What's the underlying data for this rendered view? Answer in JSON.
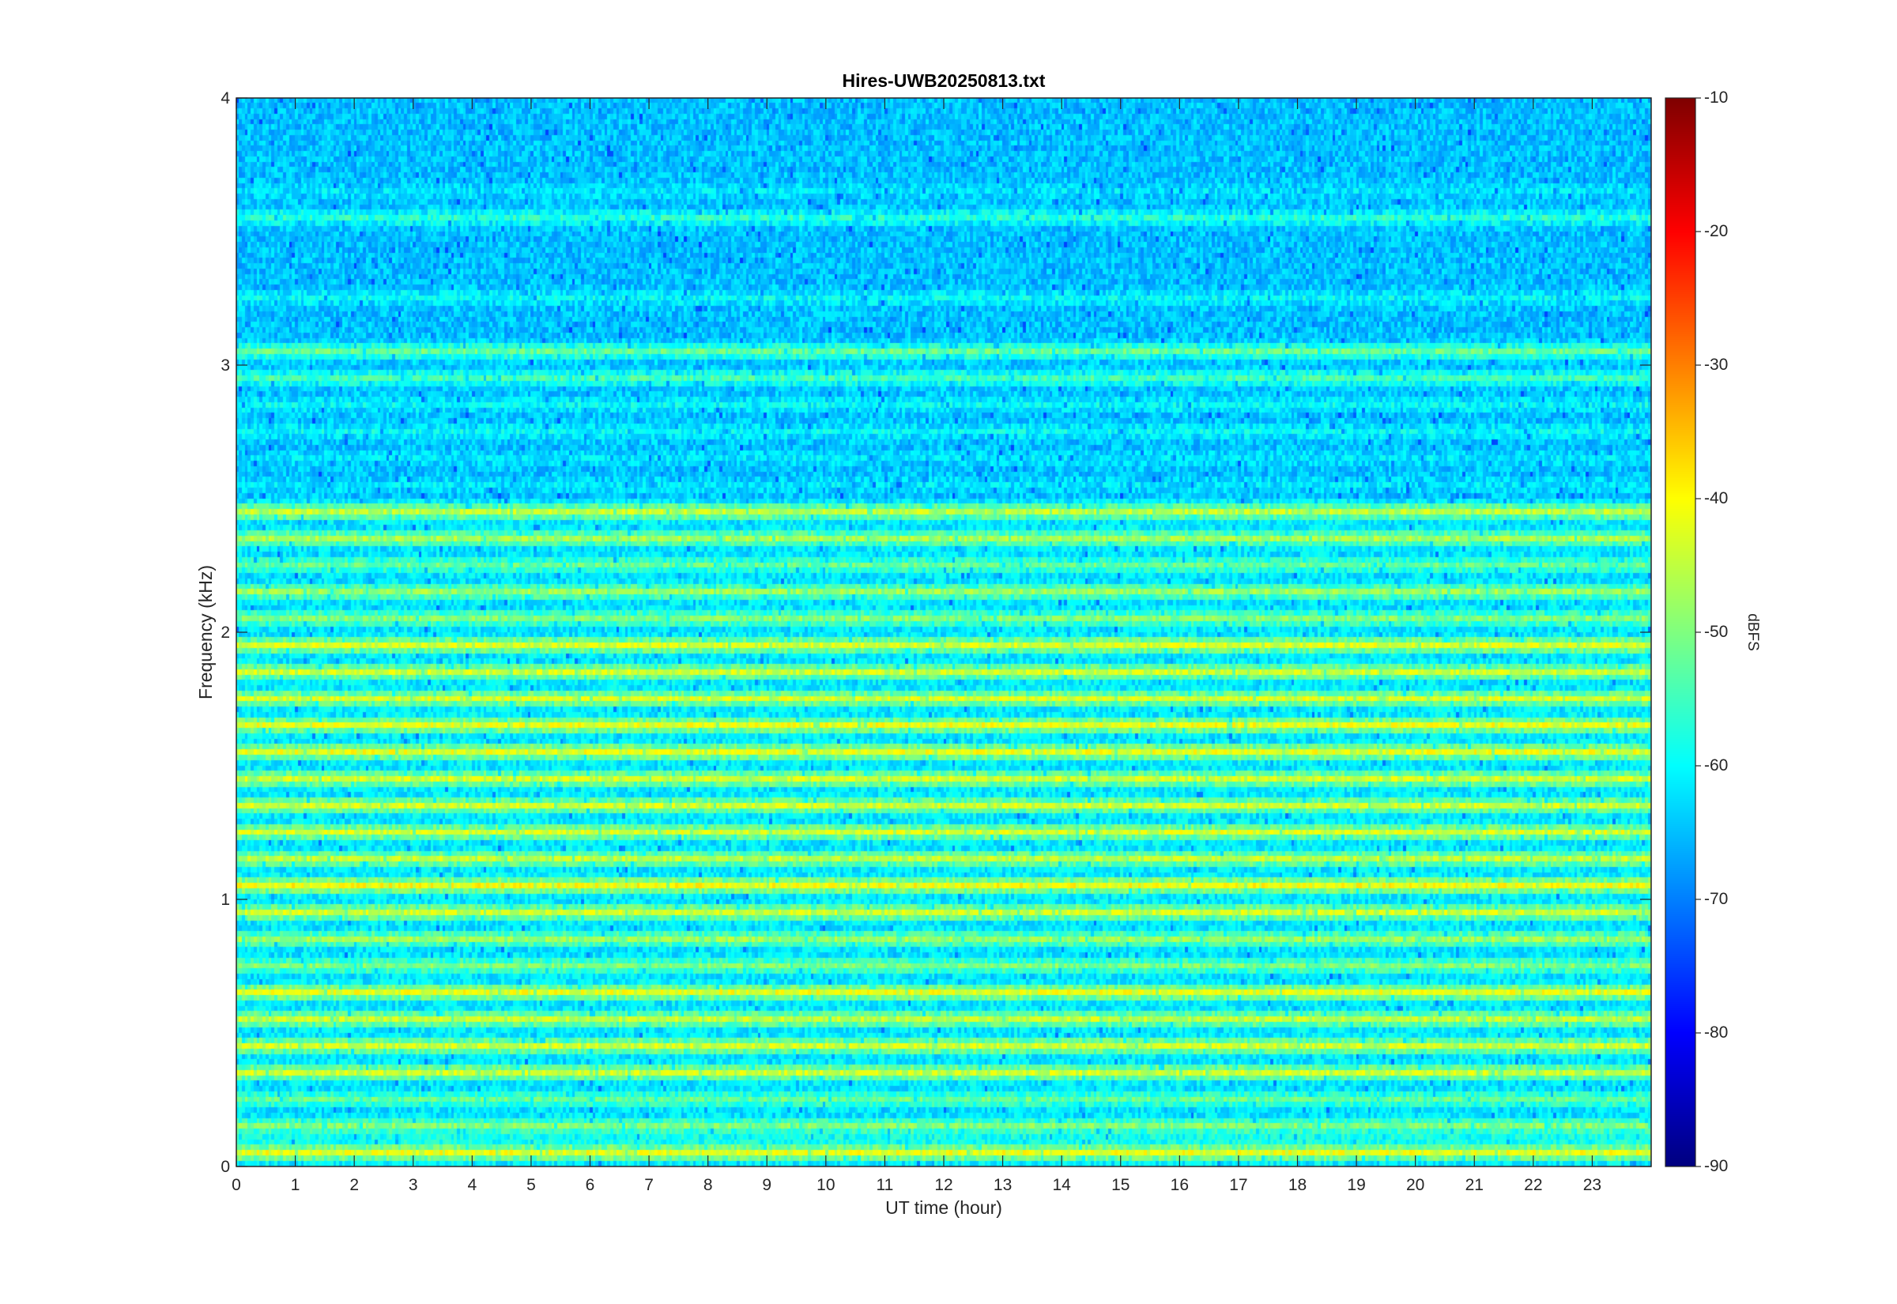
{
  "chart_data": {
    "type": "heatmap",
    "title": "Hires-UWB20250813.txt",
    "xlabel": "UT time (hour)",
    "ylabel": "Frequency (kHz)",
    "colorbar_label": "dBFS",
    "colormap": "jet",
    "xlim": [
      0,
      24
    ],
    "ylim": [
      0,
      4
    ],
    "clim": [
      -90,
      -10
    ],
    "x_ticks": [
      "0",
      "1",
      "2",
      "3",
      "4",
      "5",
      "6",
      "7",
      "8",
      "9",
      "10",
      "11",
      "12",
      "13",
      "14",
      "15",
      "16",
      "17",
      "18",
      "19",
      "20",
      "21",
      "22",
      "23"
    ],
    "y_ticks": [
      "0",
      "1",
      "2",
      "3",
      "4"
    ],
    "colorbar_ticks": [
      "-10",
      "-20",
      "-30",
      "-40",
      "-50",
      "-60",
      "-70",
      "-80",
      "-90"
    ],
    "bands_khz": [
      {
        "f": 0.05,
        "level": -42
      },
      {
        "f": 0.1,
        "level": -58
      },
      {
        "f": 0.15,
        "level": -50
      },
      {
        "f": 0.25,
        "level": -52
      },
      {
        "f": 0.35,
        "level": -44
      },
      {
        "f": 0.45,
        "level": -44
      },
      {
        "f": 0.55,
        "level": -45
      },
      {
        "f": 0.65,
        "level": -42
      },
      {
        "f": 0.75,
        "level": -50
      },
      {
        "f": 0.85,
        "level": -48
      },
      {
        "f": 0.95,
        "level": -44
      },
      {
        "f": 1.05,
        "level": -41
      },
      {
        "f": 1.15,
        "level": -45
      },
      {
        "f": 1.25,
        "level": -43
      },
      {
        "f": 1.35,
        "level": -44
      },
      {
        "f": 1.45,
        "level": -44
      },
      {
        "f": 1.55,
        "level": -42
      },
      {
        "f": 1.65,
        "level": -42
      },
      {
        "f": 1.75,
        "level": -43
      },
      {
        "f": 1.85,
        "level": -44
      },
      {
        "f": 1.95,
        "level": -43
      },
      {
        "f": 2.05,
        "level": -50
      },
      {
        "f": 2.15,
        "level": -48
      },
      {
        "f": 2.25,
        "level": -52
      },
      {
        "f": 2.35,
        "level": -47
      },
      {
        "f": 2.45,
        "level": -45
      },
      {
        "f": 2.55,
        "level": -60
      },
      {
        "f": 2.65,
        "level": -60
      },
      {
        "f": 2.75,
        "level": -58
      },
      {
        "f": 2.85,
        "level": -58
      },
      {
        "f": 2.95,
        "level": -53
      },
      {
        "f": 3.05,
        "level": -50
      },
      {
        "f": 3.25,
        "level": -58
      },
      {
        "f": 3.55,
        "level": -55
      },
      {
        "f": 3.65,
        "level": -60
      }
    ],
    "background_level": -63
  }
}
